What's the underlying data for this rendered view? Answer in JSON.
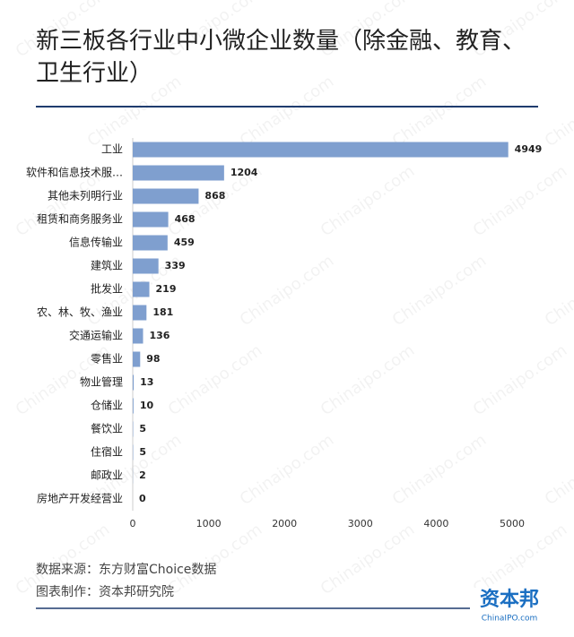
{
  "chart_data": {
    "type": "bar",
    "orientation": "horizontal",
    "title": "新三板各行业中小微企业数量（除金融、教育、卫生行业）",
    "categories": [
      "工业",
      "软件和信息技术服…",
      "其他未列明行业",
      "租赁和商务服务业",
      "信息传输业",
      "建筑业",
      "批发业",
      "农、林、牧、渔业",
      "交通运输业",
      "零售业",
      "物业管理",
      "仓储业",
      "餐饮业",
      "住宿业",
      "邮政业",
      "房地产开发经营业"
    ],
    "values": [
      4949,
      1204,
      868,
      468,
      459,
      339,
      219,
      181,
      136,
      98,
      13,
      10,
      5,
      5,
      2,
      0
    ],
    "color": "#7f9fcf",
    "xlim": [
      0,
      5000
    ],
    "xticks": [
      0,
      1000,
      2000,
      3000,
      4000,
      5000
    ],
    "source": "数据来源：东方财富Choice数据",
    "credit": "图表制作：资本邦研究院",
    "logo": "资本邦",
    "logo_sub": "ChinaIPO.com",
    "watermark": "Chinaipo.com"
  }
}
